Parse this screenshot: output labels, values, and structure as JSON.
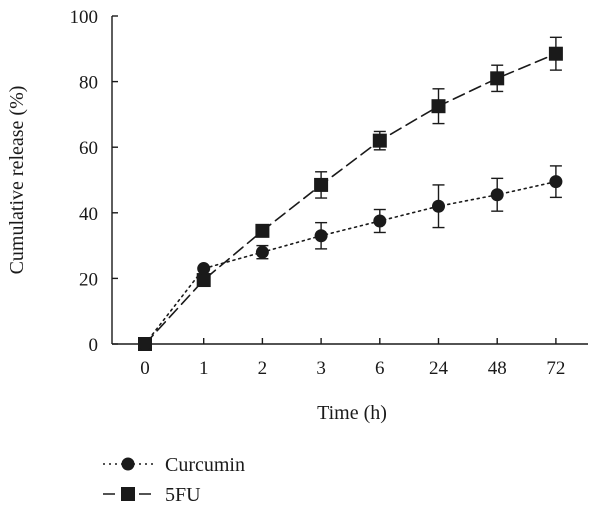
{
  "chart_data": {
    "type": "line",
    "title": "",
    "xlabel": "Time (h)",
    "ylabel": "Cumulative release (%)",
    "categories": [
      "0",
      "1",
      "2",
      "3",
      "6",
      "24",
      "48",
      "72"
    ],
    "ylim": [
      0,
      100
    ],
    "yticks": [
      "0",
      "20",
      "40",
      "60",
      "80",
      "100"
    ],
    "grid": false,
    "legend_position": "bottom-left",
    "series": [
      {
        "name": "Curcumin",
        "marker": "circle",
        "line_style": "dotted",
        "color": "#1a1a1a",
        "values": [
          0,
          23,
          28,
          33,
          37.5,
          42,
          45.5,
          49.5
        ],
        "errors": [
          0,
          0,
          2,
          4,
          3.5,
          6.5,
          5,
          4.8
        ]
      },
      {
        "name": "5FU",
        "marker": "square",
        "line_style": "dashed",
        "color": "#1a1a1a",
        "values": [
          0,
          19.5,
          34.5,
          48.5,
          62,
          72.5,
          81,
          88.5
        ],
        "errors": [
          0,
          0,
          0,
          4,
          2.8,
          5.3,
          4,
          5
        ]
      }
    ]
  }
}
